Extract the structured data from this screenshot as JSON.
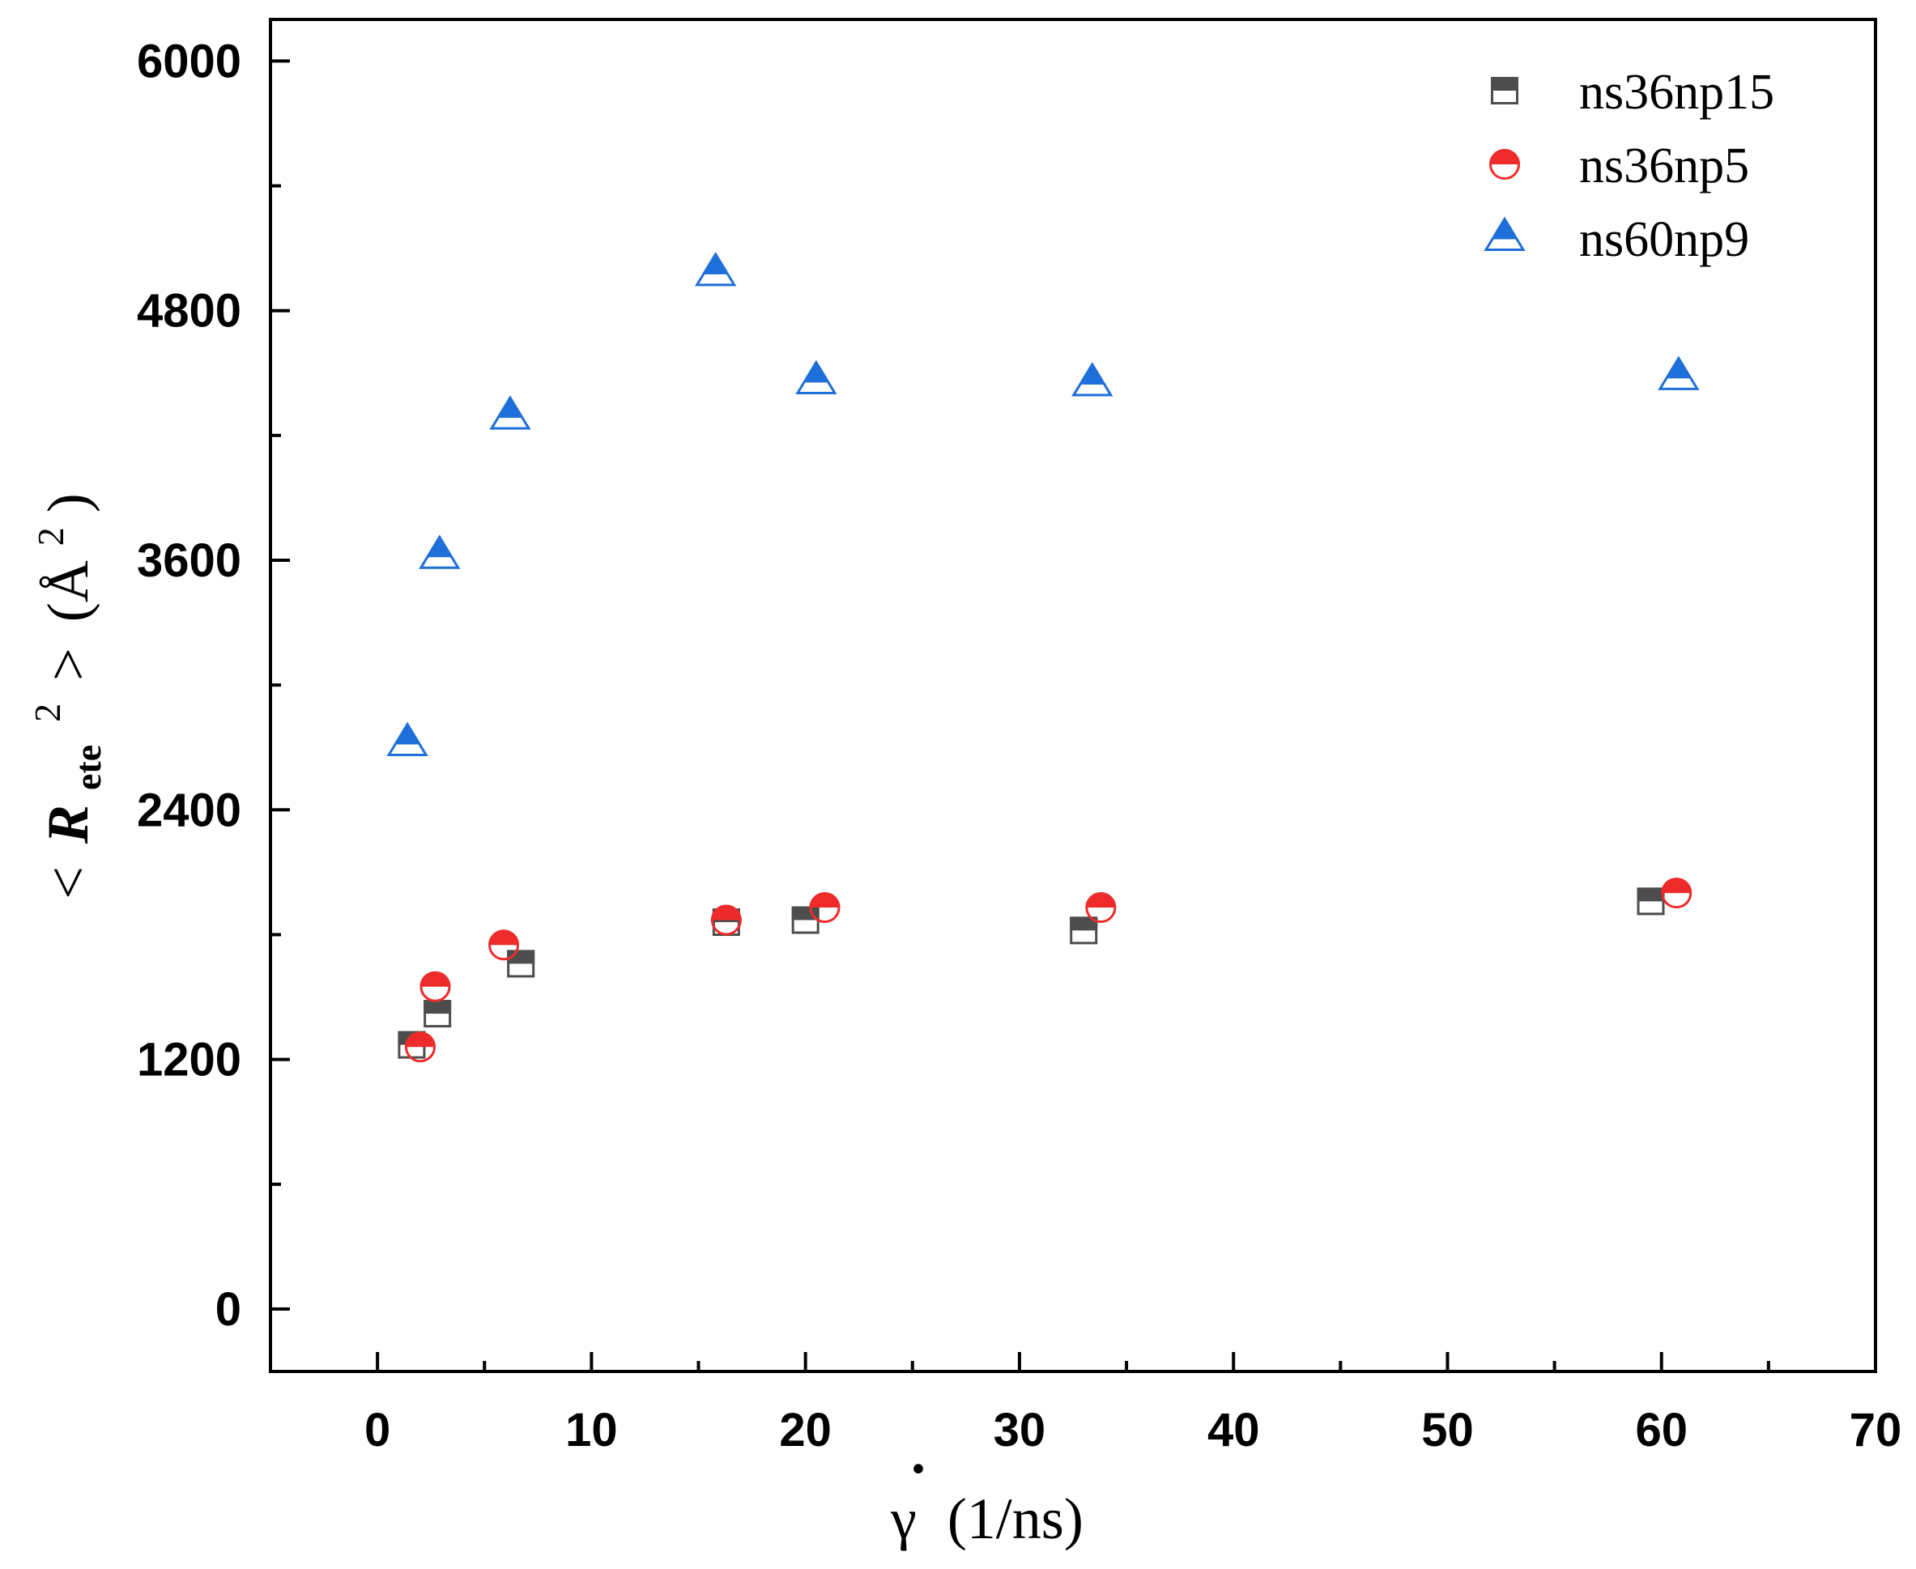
{
  "chart_data": {
    "type": "scatter",
    "title": "",
    "xlabel": "γ̇ (1/ns)",
    "ylabel": "<Rete²> (Å²)",
    "ylabel_parts": {
      "open": "<",
      "symbol": "R",
      "subscript": "ete",
      "superscript": "2",
      "close": ">",
      "unit_open": "(Å",
      "unit_sup": "2",
      "unit_close": ")"
    },
    "xlabel_parts": {
      "symbol": "γ",
      "dot": "·",
      "unit": "(1/ns)"
    },
    "xlim": [
      -5,
      70
    ],
    "ylim": [
      -300,
      6200
    ],
    "xticks": [
      0,
      10,
      20,
      30,
      40,
      50,
      60,
      70
    ],
    "yticks": [
      0,
      1200,
      2400,
      3600,
      4800,
      6000
    ],
    "legend_position": "top-right",
    "grid": false,
    "series": [
      {
        "name": "ns36np15",
        "marker": "square-half",
        "color": "#4d4d4d",
        "x": [
          1.6,
          2.8,
          6.7,
          16.3,
          20.0,
          33.0,
          59.5
        ],
        "y": [
          1270,
          1420,
          1660,
          1860,
          1870,
          1820,
          1960
        ]
      },
      {
        "name": "ns36np5",
        "marker": "circle-half",
        "color": "#ee2b2b",
        "x": [
          2.0,
          2.7,
          5.9,
          16.3,
          20.9,
          33.8,
          60.7
        ],
        "y": [
          1260,
          1550,
          1750,
          1870,
          1930,
          1930,
          2000
        ]
      },
      {
        "name": "ns60np9",
        "marker": "triangle-half",
        "color": "#1e6fd9",
        "x": [
          1.4,
          2.9,
          6.2,
          15.8,
          20.5,
          33.4,
          60.8
        ],
        "y": [
          2720,
          3620,
          4290,
          4980,
          4460,
          4450,
          4480
        ]
      }
    ]
  }
}
